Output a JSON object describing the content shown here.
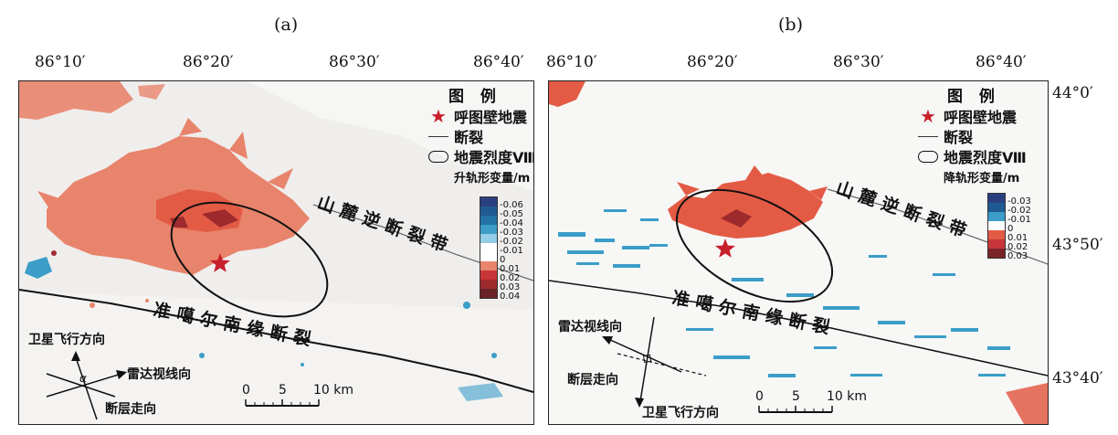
{
  "panels": [
    {
      "label": "(a)",
      "lon_ticks": [
        "86°10′",
        "86°20′",
        "86°30′",
        "86°40′"
      ],
      "legend": {
        "title": "图 例",
        "epicenter": "呼图壁地震",
        "fault": "断裂",
        "intensity": "地震烈度Ⅷ",
        "colorbar_title": "升轨形变量/m",
        "colorbar_labels": [
          "-0.06",
          "-0.05",
          "-0.04",
          "-0.03",
          "-0.02",
          "-0.01",
          "0",
          "0.01",
          "0.02",
          "0.03",
          "0.04"
        ]
      },
      "fault_labels": [
        "山麓逆断裂带",
        "准噶尔南缘断裂"
      ],
      "directions": {
        "satellite": "卫星飞行方向",
        "radar": "雷达视线向",
        "strike": "断层走向",
        "angle": "α"
      },
      "scale": {
        "labels": [
          "0",
          "5",
          "10 km"
        ]
      }
    },
    {
      "label": "(b)",
      "lon_ticks": [
        "86°10′",
        "86°20′",
        "86°30′",
        "86°40′"
      ],
      "lat_ticks": [
        "44°0′",
        "43°50′",
        "43°40′"
      ],
      "legend": {
        "title": "图 例",
        "epicenter": "呼图壁地震",
        "fault": "断裂",
        "intensity": "地震烈度Ⅷ",
        "colorbar_title": "降轨形变量/m",
        "colorbar_labels": [
          "-0.03",
          "-0.02",
          "-0.01",
          "0",
          "0.01",
          "0.02",
          "0.03"
        ]
      },
      "fault_labels": [
        "山麓逆断裂带",
        "准噶尔南缘断裂"
      ],
      "directions": {
        "radar": "雷达视线向",
        "strike": "断层走向",
        "satellite": "卫星飞行方向"
      },
      "scale": {
        "labels": [
          "0",
          "5",
          "10 km"
        ]
      }
    }
  ],
  "colors": {
    "uplift_light": "#e8846c",
    "uplift_mid": "#e35b45",
    "uplift_dark": "#9e2a2e",
    "subsidence": "#3b9dc8",
    "epicenter": "#c8202b"
  }
}
